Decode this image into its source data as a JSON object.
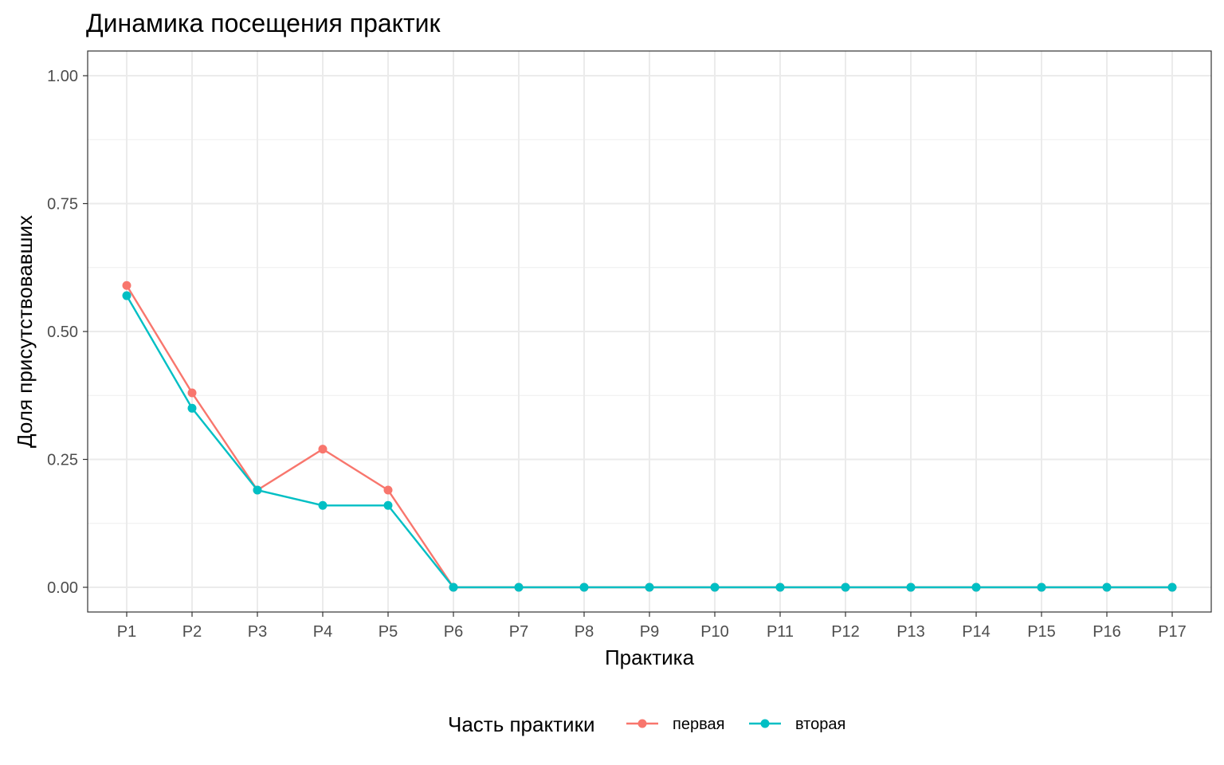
{
  "chart_data": {
    "type": "line",
    "title": "Динамика посещения практик",
    "xlabel": "Практика",
    "ylabel": "Доля присутствовавших",
    "categories": [
      "P1",
      "P2",
      "P3",
      "P4",
      "P5",
      "P6",
      "P7",
      "P8",
      "P9",
      "P10",
      "P11",
      "P12",
      "P13",
      "P14",
      "P15",
      "P16",
      "P17"
    ],
    "ylim": [
      0,
      1
    ],
    "yticks": [
      0,
      0.25,
      0.5,
      0.75,
      1
    ],
    "ytick_labels": [
      "0.00",
      "0.25",
      "0.50",
      "0.75",
      "1.00"
    ],
    "grid": true,
    "legend": {
      "title": "Часть практики",
      "position": "bottom"
    },
    "series": [
      {
        "name": "первая",
        "color": "#F8766D",
        "values": [
          0.59,
          0.38,
          0.19,
          0.27,
          0.19,
          0,
          0,
          0,
          0,
          0,
          0,
          0,
          0,
          0,
          0,
          0,
          0
        ]
      },
      {
        "name": "вторая",
        "color": "#00BFC4",
        "values": [
          0.57,
          0.35,
          0.19,
          0.16,
          0.16,
          0,
          0,
          0,
          0,
          0,
          0,
          0,
          0,
          0,
          0,
          0,
          0
        ]
      }
    ]
  }
}
